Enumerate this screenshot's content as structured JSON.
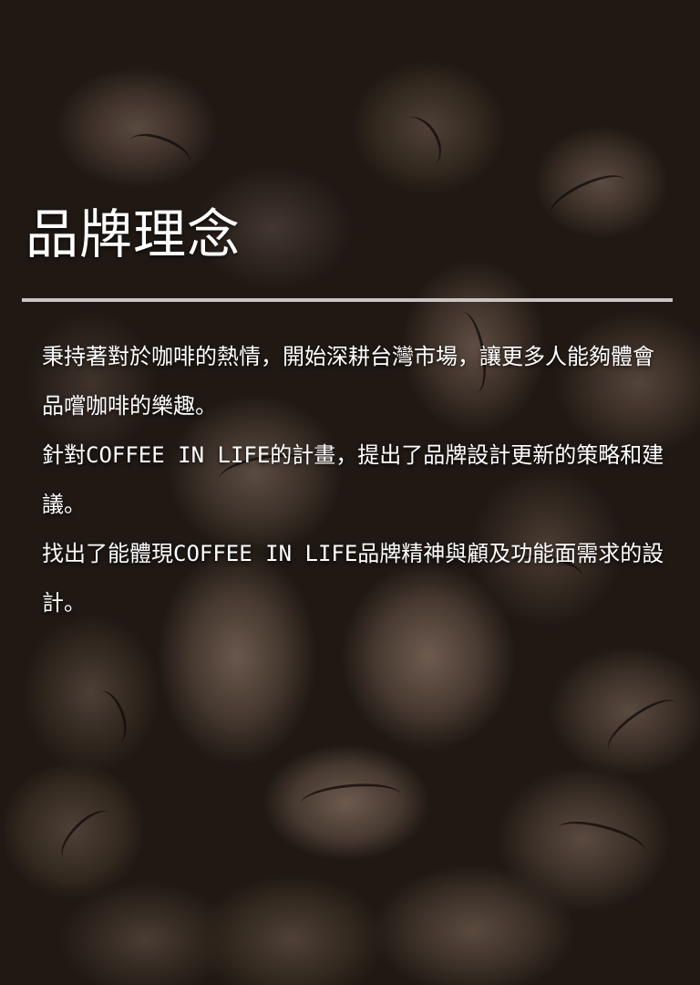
{
  "section": {
    "title": "品牌理念",
    "paragraphs": [
      "秉持著對於咖啡的熱情，開始深耕台灣市場，讓更多人能夠體會品嚐咖啡的樂趣。",
      "針對COFFEE IN LIFE的計畫，提出了品牌設計更新的策略和建議。",
      "找出了能體現COFFEE IN LIFE品牌精神與顧及功能面需求的設計。"
    ]
  }
}
